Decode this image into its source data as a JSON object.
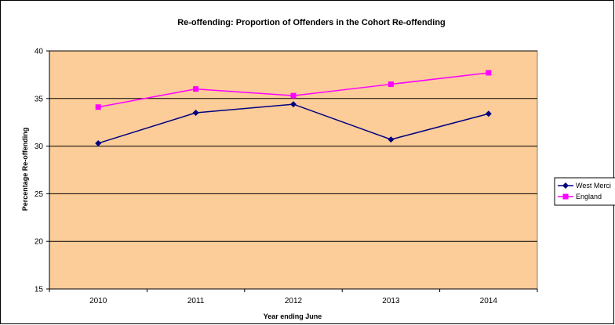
{
  "chart_data": {
    "type": "line",
    "title": "Re-offending: Proportion of Offenders in the Cohort Re-offending",
    "xlabel": "Year ending June",
    "ylabel": "Percentage Re-offending",
    "categories": [
      "2010",
      "2011",
      "2012",
      "2013",
      "2014"
    ],
    "ylim": [
      15,
      40
    ],
    "yticks": [
      15,
      20,
      25,
      30,
      35,
      40
    ],
    "grid": true,
    "legend_position": "right",
    "plot_background": "#FCCC99",
    "series": [
      {
        "name": "West Merci",
        "color": "#000080",
        "marker": "diamond",
        "values": [
          30.3,
          33.5,
          34.4,
          30.7,
          33.4
        ]
      },
      {
        "name": "England",
        "color": "#FF00FF",
        "marker": "square",
        "values": [
          34.1,
          36.0,
          35.3,
          36.5,
          37.7
        ]
      }
    ]
  }
}
